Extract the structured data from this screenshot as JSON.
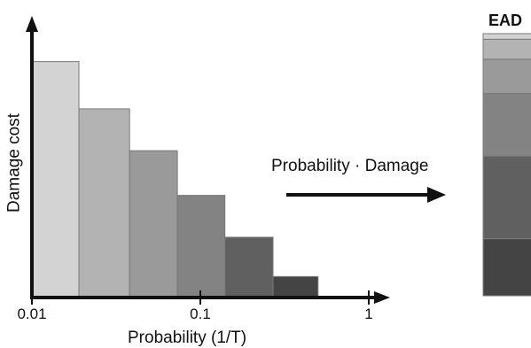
{
  "diagram": {
    "x_axis_label": "Probability (1/T)",
    "y_axis_label": "Damage cost",
    "x_ticks": [
      "0.01",
      "0.1",
      "1"
    ],
    "arrow_label": "Probability · Damage",
    "result_label": "EAD"
  },
  "chart_data": {
    "type": "bar",
    "title": "",
    "xlabel": "Probability (1/T)",
    "ylabel": "Damage cost",
    "xscale": "log",
    "x_ticks": [
      0.01,
      0.1,
      1
    ],
    "xlim": [
      0.01,
      1
    ],
    "bars": [
      {
        "x_from": 0.01,
        "x_to": 0.019,
        "value": 0.9,
        "color": "#d3d3d3"
      },
      {
        "x_from": 0.019,
        "x_to": 0.038,
        "value": 0.72,
        "color": "#b3b3b3"
      },
      {
        "x_from": 0.038,
        "x_to": 0.073,
        "value": 0.56,
        "color": "#9a9a9a"
      },
      {
        "x_from": 0.073,
        "x_to": 0.14,
        "value": 0.39,
        "color": "#838383"
      },
      {
        "x_from": 0.14,
        "x_to": 0.27,
        "value": 0.23,
        "color": "#606060"
      },
      {
        "x_from": 0.27,
        "x_to": 0.5,
        "value": 0.08,
        "color": "#444444"
      }
    ],
    "ead_stack": [
      {
        "value": 0.02,
        "color": "#d3d3d3"
      },
      {
        "value": 0.07,
        "color": "#b3b3b3"
      },
      {
        "value": 0.12,
        "color": "#9a9a9a"
      },
      {
        "value": 0.22,
        "color": "#838383"
      },
      {
        "value": 0.29,
        "color": "#606060"
      },
      {
        "value": 0.2,
        "color": "#444444"
      }
    ]
  }
}
